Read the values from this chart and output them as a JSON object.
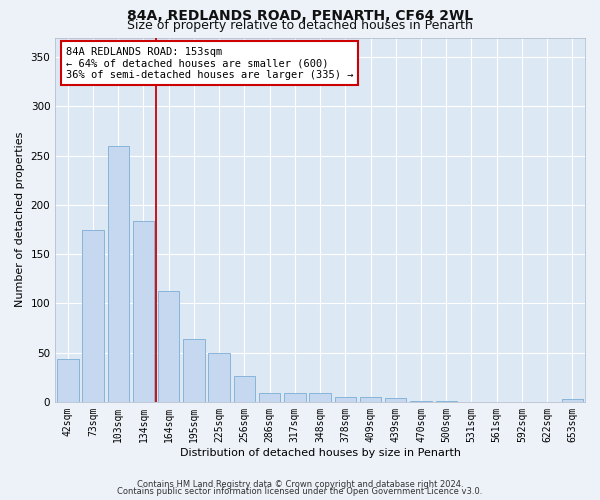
{
  "title1": "84A, REDLANDS ROAD, PENARTH, CF64 2WL",
  "title2": "Size of property relative to detached houses in Penarth",
  "xlabel": "Distribution of detached houses by size in Penarth",
  "ylabel": "Number of detached properties",
  "categories": [
    "42sqm",
    "73sqm",
    "103sqm",
    "134sqm",
    "164sqm",
    "195sqm",
    "225sqm",
    "256sqm",
    "286sqm",
    "317sqm",
    "348sqm",
    "378sqm",
    "409sqm",
    "439sqm",
    "470sqm",
    "500sqm",
    "531sqm",
    "561sqm",
    "592sqm",
    "622sqm",
    "653sqm"
  ],
  "values": [
    44,
    175,
    260,
    184,
    113,
    64,
    50,
    26,
    9,
    9,
    9,
    5,
    5,
    4,
    1,
    1,
    0,
    0,
    0,
    0,
    3
  ],
  "bar_color": "#c5d8f0",
  "bar_edge_color": "#7aadd4",
  "annotation_title": "84A REDLANDS ROAD: 153sqm",
  "annotation_line1": "← 64% of detached houses are smaller (600)",
  "annotation_line2": "36% of semi-detached houses are larger (335) →",
  "annotation_box_color": "#ffffff",
  "annotation_box_edge": "#cc0000",
  "ylim": [
    0,
    370
  ],
  "yticks": [
    0,
    50,
    100,
    150,
    200,
    250,
    300,
    350
  ],
  "footer1": "Contains HM Land Registry data © Crown copyright and database right 2024.",
  "footer2": "Contains public sector information licensed under the Open Government Licence v3.0.",
  "fig_bg_color": "#edf2f8",
  "plot_bg_color": "#dde8f5",
  "grid_color": "#ffffff",
  "title_fontsize": 10,
  "subtitle_fontsize": 9,
  "axis_label_fontsize": 8,
  "tick_fontsize": 7,
  "footer_fontsize": 6,
  "annotation_fontsize": 7.5
}
